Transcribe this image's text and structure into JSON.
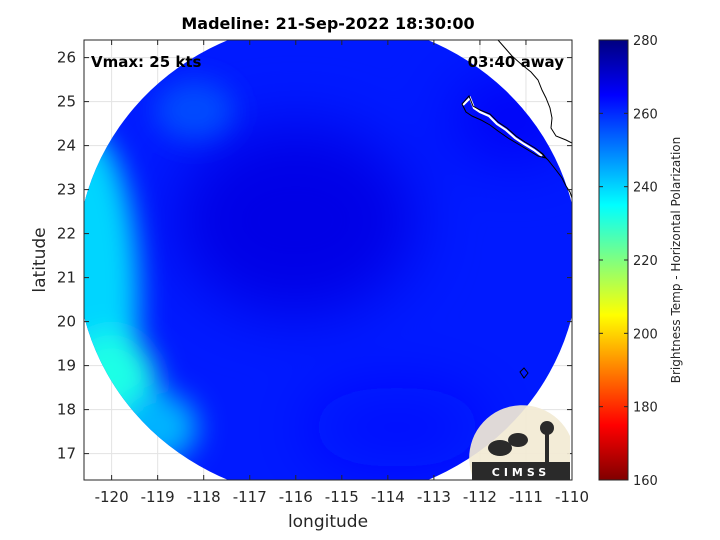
{
  "chart_data": {
    "type": "heatmap",
    "title": "Madeline: 21-Sep-2022 18:30:00",
    "xlabel": "longitude",
    "ylabel": "latitude",
    "xlim": [
      -120.6,
      -110
    ],
    "ylim": [
      16.4,
      26.4
    ],
    "xticks": [
      -120,
      -119,
      -118,
      -117,
      -116,
      -115,
      -114,
      -113,
      -112,
      -111,
      -110
    ],
    "yticks": [
      17,
      18,
      19,
      20,
      21,
      22,
      23,
      24,
      25,
      26
    ],
    "grid": true,
    "annotations": {
      "vmax": "Vmax: 25 kts",
      "time_away": "03:40 away"
    },
    "colorbar": {
      "label": "Brightness Temp - Horizontal Polarization",
      "range": [
        160,
        280
      ],
      "ticks": [
        160,
        180,
        200,
        220,
        240,
        260,
        280
      ],
      "colormap": "jet"
    },
    "swath": {
      "center_lon": -115.3,
      "center_lat": 21.4,
      "radius_deg": 5.45
    },
    "field": {
      "background_temp": 262,
      "core_temp": 268,
      "core_center": [
        -116,
        22.3
      ],
      "coastal_warm_temp": 266,
      "western_edge_temp": 240,
      "southwest_min_temp": 232
    },
    "logo_text": "CIMSS"
  }
}
